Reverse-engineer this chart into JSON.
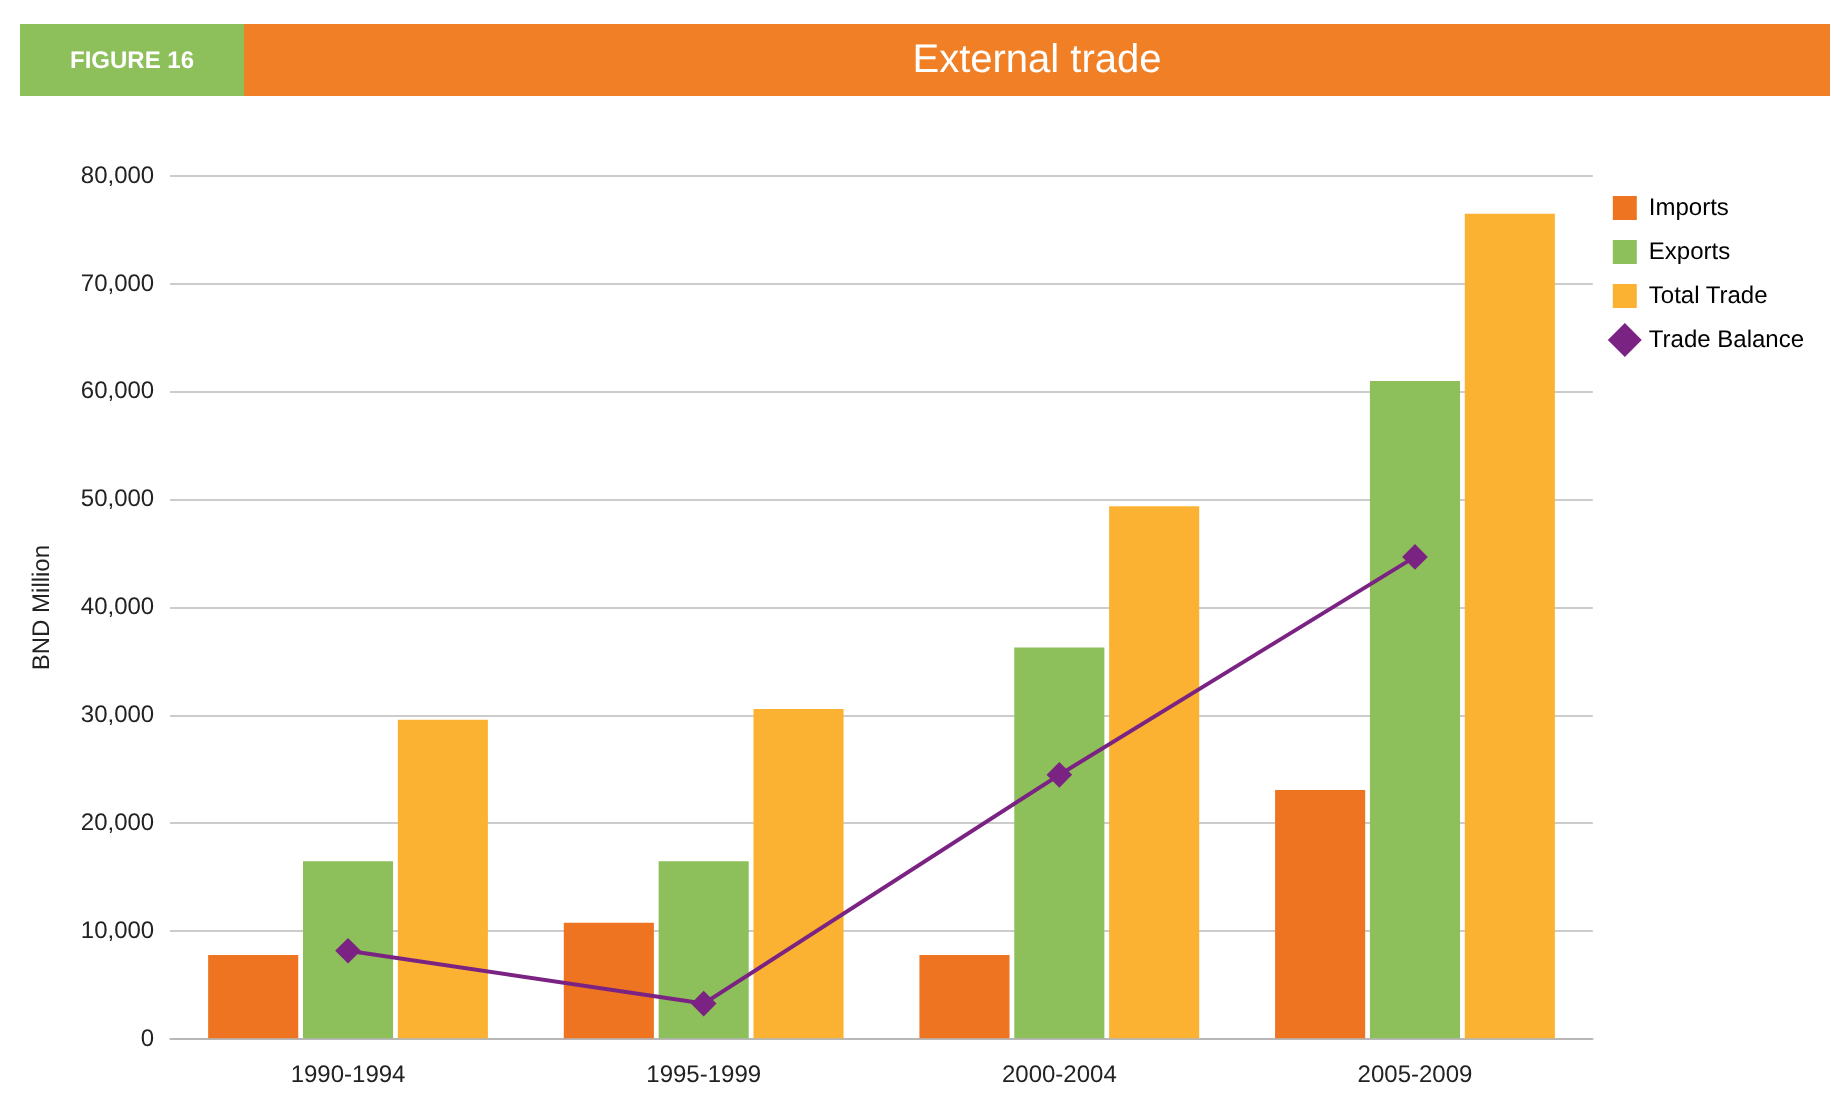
{
  "chart_data": {
    "type": "bar",
    "title": "External trade",
    "annotations": [
      "FIGURE 16"
    ],
    "ylabel": "BND Million",
    "categories": [
      "1990-1994",
      "1995-1999",
      "2000-2004",
      "2005-2009"
    ],
    "series": [
      {
        "name": "Imports",
        "color": "#ee7422",
        "values": [
          7800,
          10800,
          7800,
          23100
        ]
      },
      {
        "name": "Exports",
        "color": "#8dbf5a",
        "values": [
          16500,
          16500,
          36300,
          61000
        ]
      },
      {
        "name": "Total Trade",
        "color": "#fbb232",
        "values": [
          29600,
          30600,
          49400,
          76500
        ]
      },
      {
        "name": "Trade Balance",
        "type": "line",
        "color": "#7b2383",
        "values": [
          8200,
          3300,
          24500,
          44700
        ],
        "marker": "diamond"
      }
    ],
    "ylim": [
      0,
      80000
    ],
    "yticks": [
      0,
      {
        "value": 10000,
        "label": "10,000"
      },
      {
        "value": 20000,
        "label": "20,000"
      },
      {
        "value": 30000,
        "label": "30,000"
      },
      {
        "value": 40000,
        "label": "40,000"
      },
      {
        "value": 50000,
        "label": "50,000"
      },
      {
        "value": 60000,
        "label": "60,000"
      },
      {
        "value": 70000,
        "label": "70,000"
      },
      {
        "value": 80000,
        "label": "80,000"
      }
    ],
    "grid": "y",
    "legend": "top right"
  }
}
